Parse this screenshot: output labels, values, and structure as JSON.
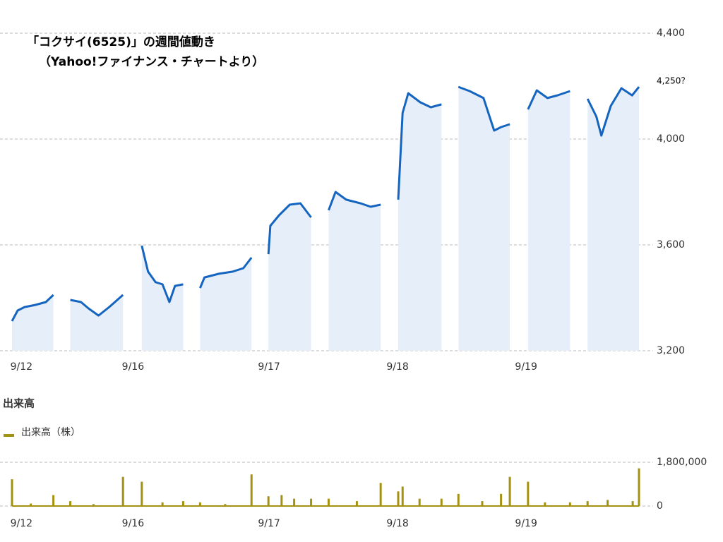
{
  "chart_data": [
    {
      "type": "line",
      "title": "「コクサイ(6525)」の週間値動き",
      "subtitle": "（Yahoo!ファイナンス・チャートより）",
      "annotation": "4,250？",
      "color": "#1565c0",
      "fill": "#e6eff9",
      "x": [
        0,
        0.9,
        2.0,
        3.7,
        5.4,
        6.6,
        null,
        9.3,
        11.0,
        12.2,
        13.8,
        15.5,
        17.7,
        null,
        20.7,
        21.7,
        22.9,
        24.0,
        25.1,
        26.0,
        27.3,
        null,
        30.0,
        30.7,
        33.0,
        35.2,
        36.9,
        38.2,
        null,
        40.9,
        41.2,
        42.6,
        44.3,
        46.0,
        47.7,
        null,
        50.5,
        51.6,
        53.3,
        55.6,
        57.2,
        58.8,
        null,
        61.6,
        62.3,
        63.2,
        65.1,
        66.8,
        68.5,
        null,
        71.2,
        73.0,
        75.2,
        76.9,
        78.0,
        79.4,
        null,
        82.3,
        83.7,
        85.4,
        87.0,
        89.0,
        null,
        91.8,
        93.2,
        94.0,
        95.5,
        97.2,
        98.9,
        100
      ],
      "values": [
        3312,
        3352,
        3365,
        3373,
        3384,
        3411,
        null,
        3392,
        3384,
        3360,
        3333,
        3365,
        3411,
        null,
        3597,
        3499,
        3459,
        3451,
        3384,
        3445,
        3451,
        null,
        3437,
        3477,
        3491,
        3499,
        3512,
        3552,
        null,
        3565,
        3672,
        3712,
        3752,
        3757,
        3704,
        null,
        3731,
        3800,
        3771,
        3757,
        3744,
        3752,
        null,
        3771,
        4099,
        4173,
        4139,
        4120,
        4131,
        null,
        4197,
        4181,
        4155,
        4032,
        4045,
        4056,
        null,
        4112,
        4184,
        4155,
        4165,
        4181,
        null,
        4152,
        4085,
        4013,
        4125,
        4192,
        4165,
        4197
      ],
      "xlim": [
        0,
        100
      ],
      "xticks": [
        {
          "value": 1.5,
          "label": "9/12"
        },
        {
          "value": 19.3,
          "label": "9/16"
        },
        {
          "value": 41.0,
          "label": "9/17"
        },
        {
          "value": 61.5,
          "label": "9/18"
        },
        {
          "value": 82.0,
          "label": "9/19"
        }
      ],
      "ylim": [
        3200,
        4400
      ],
      "yticks": [
        {
          "value": 3200,
          "label": "3,200"
        },
        {
          "value": 3600,
          "label": "3,600"
        },
        {
          "value": 4000,
          "label": "4,000"
        },
        {
          "value": 4400,
          "label": "4,400"
        }
      ],
      "grid": true
    },
    {
      "type": "bar",
      "title": "出来高",
      "series": [
        {
          "name": "出来高（株）",
          "color": "#a39112",
          "values": [
            1100000,
            100000,
            450000,
            200000,
            80000,
            1200000,
            1000000,
            150000,
            200000,
            150000,
            80000,
            1300000,
            400000,
            450000,
            300000,
            300000,
            300000,
            200000,
            950000,
            600000,
            800000,
            300000,
            300000,
            500000,
            200000,
            500000,
            1200000,
            1000000,
            150000,
            150000,
            200000,
            250000,
            200000,
            1550000
          ]
        }
      ],
      "x": [
        0,
        3,
        6.6,
        9.3,
        13,
        17.7,
        20.7,
        24,
        27.3,
        30,
        34,
        38.2,
        40.9,
        43,
        45,
        47.7,
        50.5,
        55,
        58.8,
        61.6,
        62.3,
        65,
        68.5,
        71.2,
        75,
        78,
        79.4,
        82.3,
        85,
        89,
        91.8,
        95,
        99,
        100
      ],
      "xlim": [
        0,
        100
      ],
      "xticks": [
        {
          "value": 1.5,
          "label": "9/12"
        },
        {
          "value": 19.3,
          "label": "9/16"
        },
        {
          "value": 41.0,
          "label": "9/17"
        },
        {
          "value": 61.5,
          "label": "9/18"
        },
        {
          "value": 82.0,
          "label": "9/19"
        }
      ],
      "ylim": [
        0,
        1800000
      ],
      "yticks": [
        0,
        {
          "value": 1800000,
          "label": "1,800,000"
        }
      ],
      "grid": true
    }
  ]
}
